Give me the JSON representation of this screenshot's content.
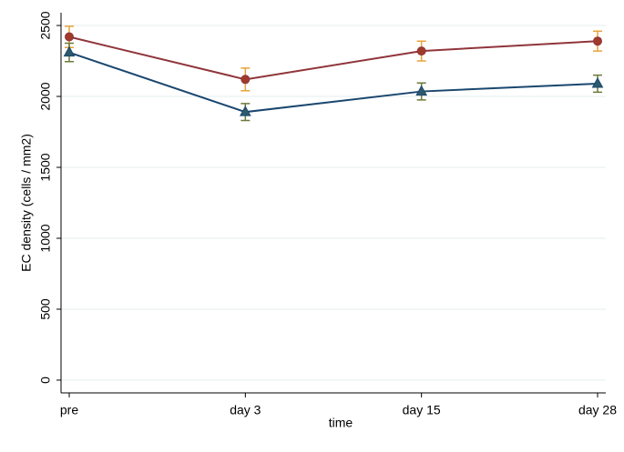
{
  "chart_data": {
    "type": "line",
    "x_label": "time",
    "y_label": "EC density (cells / mm2)",
    "categories": [
      "pre",
      "day 3",
      "day 15",
      "day 28"
    ],
    "series": [
      {
        "color": "#90353b",
        "marker_color": "#a03a2a",
        "error_color": "#e8a33a",
        "marker": "circle",
        "values": [
          2420,
          2120,
          2320,
          2390
        ],
        "errors": [
          75,
          80,
          70,
          70
        ]
      },
      {
        "color": "#1a476f",
        "marker_color": "#2d5a6b",
        "error_color": "#6b7a3a",
        "marker": "triangle",
        "values": [
          2310,
          1890,
          2035,
          2090
        ],
        "errors": [
          65,
          60,
          60,
          60
        ]
      }
    ],
    "ylim": [
      -90,
      2590
    ],
    "yticks": [
      0,
      500,
      1000,
      1500,
      2000,
      2500
    ],
    "grid": true
  }
}
